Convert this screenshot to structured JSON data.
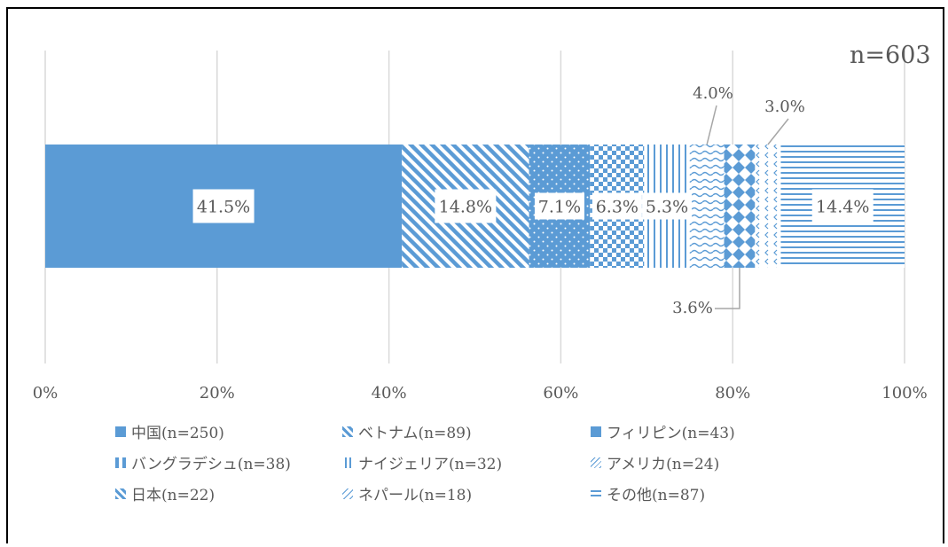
{
  "chart_data": {
    "type": "bar",
    "orientation": "horizontal-stacked-100",
    "annotation": "n=603",
    "x_ticks": [
      "0%",
      "20%",
      "40%",
      "60%",
      "80%",
      "100%"
    ],
    "xlim": [
      0,
      100
    ],
    "grid": true,
    "legend_position": "bottom",
    "series": [
      {
        "name": "中国(n=250)",
        "value": 41.5,
        "label": "41.5%",
        "pattern": "solid"
      },
      {
        "name": "ベトナム(n=89)",
        "value": 14.8,
        "label": "14.8%",
        "pattern": "diagonal"
      },
      {
        "name": "フィリピン(n=43)",
        "value": 7.1,
        "label": "7.1%",
        "pattern": "dots"
      },
      {
        "name": "バングラデシュ(n=38)",
        "value": 6.3,
        "label": "6.3%",
        "pattern": "checker"
      },
      {
        "name": "ナイジェリア(n=32)",
        "value": 5.3,
        "label": "5.3%",
        "pattern": "vertical"
      },
      {
        "name": "アメリカ(n=24)",
        "value": 4.0,
        "label": "4.0%",
        "pattern": "wave"
      },
      {
        "name": "日本(n=22)",
        "value": 3.6,
        "label": "3.6%",
        "pattern": "diamond"
      },
      {
        "name": "ネパール(n=18)",
        "value": 3.0,
        "label": "3.0%",
        "pattern": "chevron"
      },
      {
        "name": "その他(n=87)",
        "value": 14.4,
        "label": "14.4%",
        "pattern": "horizontal"
      }
    ],
    "colors": {
      "fill": "#5b9bd5",
      "grid": "#d9d9d9",
      "text": "#595959"
    }
  }
}
